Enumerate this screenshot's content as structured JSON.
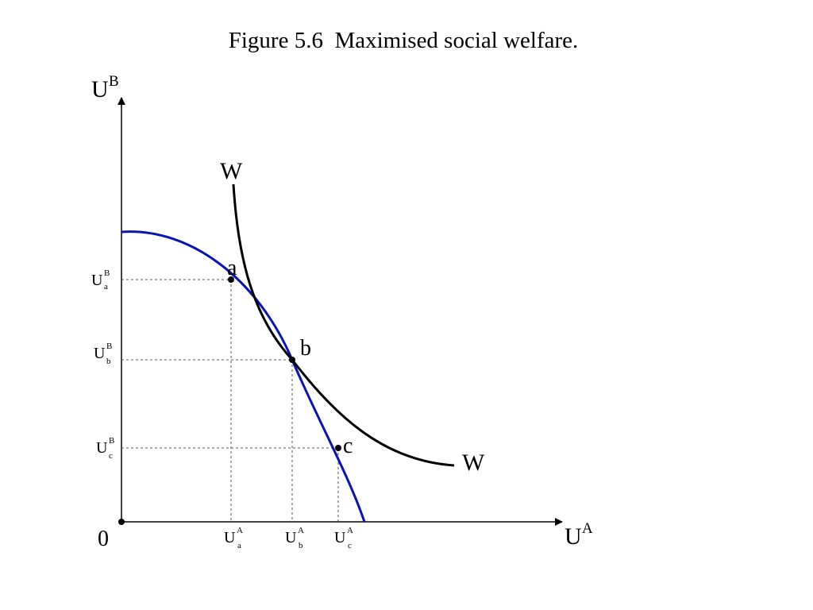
{
  "title": "Figure 5.6  Maximised social welfare.",
  "axes": {
    "y_label": {
      "main": "U",
      "sup": "B"
    },
    "x_label": {
      "main": "U",
      "sup": "A"
    },
    "origin_label": "0"
  },
  "curves": {
    "frontier_color": "#0a14b4",
    "welfare_color": "#000000",
    "welfare_label_top": "W",
    "welfare_label_bottom": "W"
  },
  "points": [
    {
      "id": "a",
      "label": "a",
      "x_tick": {
        "main": "U",
        "sup": "A",
        "sub": "a"
      },
      "y_tick": {
        "main": "U",
        "sup": "B",
        "sub": "a"
      }
    },
    {
      "id": "b",
      "label": "b",
      "x_tick": {
        "main": "U",
        "sup": "A",
        "sub": "b"
      },
      "y_tick": {
        "main": "U",
        "sup": "B",
        "sub": "b"
      }
    },
    {
      "id": "c",
      "label": "c",
      "x_tick": {
        "main": "U",
        "sup": "A",
        "sub": "c"
      },
      "y_tick": {
        "main": "U",
        "sup": "B",
        "sub": "c"
      }
    }
  ]
}
